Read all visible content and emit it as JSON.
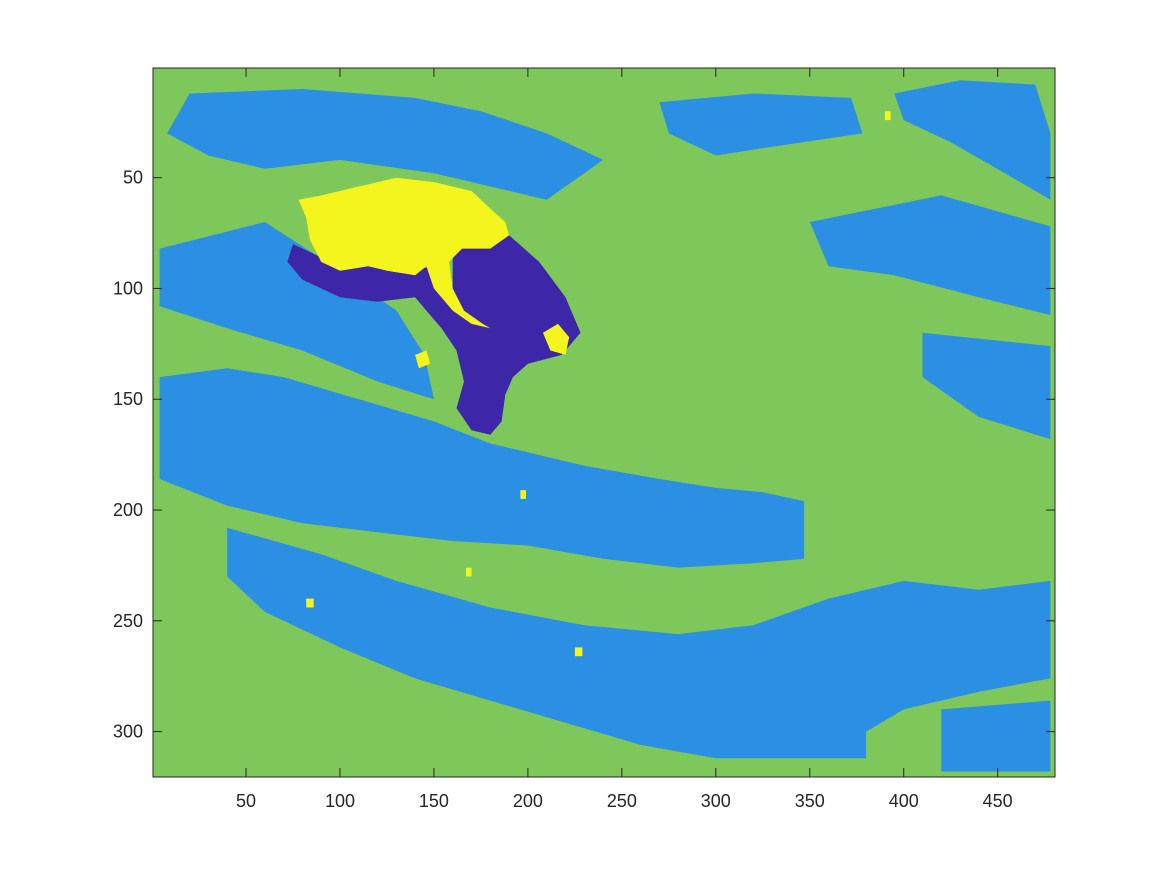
{
  "chart_data": {
    "type": "heatmap",
    "title": "",
    "xlabel": "",
    "ylabel": "",
    "xlim": [
      0.5,
      480.5
    ],
    "ylim": [
      0.5,
      320.5
    ],
    "y_reversed": true,
    "x_ticks": [
      50,
      100,
      150,
      200,
      250,
      300,
      350,
      400,
      450
    ],
    "x_tick_labels": [
      "50",
      "100",
      "150",
      "200",
      "250",
      "300",
      "350",
      "400",
      "450"
    ],
    "y_ticks": [
      50,
      100,
      150,
      200,
      250,
      300
    ],
    "y_tick_labels": [
      "50",
      "100",
      "150",
      "200",
      "250",
      "300"
    ],
    "grid": false,
    "colormap": [
      "#3e26a8",
      "#2b8fe3",
      "#7ec75a",
      "#f5f51e"
    ],
    "classes": [
      1,
      2,
      3,
      4
    ],
    "background_class": 3,
    "regions": [
      {
        "class": 2,
        "points": [
          [
            20,
            12
          ],
          [
            80,
            10
          ],
          [
            140,
            14
          ],
          [
            175,
            20
          ],
          [
            210,
            30
          ],
          [
            240,
            42
          ],
          [
            210,
            60
          ],
          [
            150,
            48
          ],
          [
            100,
            42
          ],
          [
            60,
            46
          ],
          [
            30,
            40
          ],
          [
            8,
            30
          ]
        ]
      },
      {
        "class": 2,
        "points": [
          [
            270,
            16
          ],
          [
            320,
            12
          ],
          [
            372,
            14
          ],
          [
            378,
            30
          ],
          [
            330,
            36
          ],
          [
            300,
            40
          ],
          [
            275,
            30
          ]
        ]
      },
      {
        "class": 2,
        "points": [
          [
            395,
            12
          ],
          [
            430,
            6
          ],
          [
            470,
            8
          ],
          [
            478,
            30
          ],
          [
            478,
            60
          ],
          [
            458,
            50
          ],
          [
            425,
            34
          ],
          [
            400,
            24
          ]
        ]
      },
      {
        "class": 2,
        "points": [
          [
            350,
            70
          ],
          [
            420,
            58
          ],
          [
            478,
            72
          ],
          [
            478,
            112
          ],
          [
            440,
            104
          ],
          [
            395,
            94
          ],
          [
            360,
            90
          ]
        ]
      },
      {
        "class": 2,
        "points": [
          [
            410,
            120
          ],
          [
            478,
            126
          ],
          [
            478,
            168
          ],
          [
            440,
            158
          ],
          [
            410,
            140
          ]
        ]
      },
      {
        "class": 2,
        "points": [
          [
            4,
            82
          ],
          [
            60,
            70
          ],
          [
            100,
            92
          ],
          [
            130,
            110
          ],
          [
            145,
            130
          ],
          [
            150,
            150
          ],
          [
            120,
            142
          ],
          [
            80,
            128
          ],
          [
            40,
            118
          ],
          [
            4,
            108
          ]
        ]
      },
      {
        "class": 2,
        "points": [
          [
            4,
            140
          ],
          [
            40,
            136
          ],
          [
            70,
            140
          ],
          [
            110,
            150
          ],
          [
            150,
            160
          ],
          [
            180,
            170
          ],
          [
            230,
            180
          ],
          [
            270,
            186
          ],
          [
            300,
            190
          ],
          [
            325,
            192
          ],
          [
            347,
            196
          ],
          [
            347,
            222
          ],
          [
            320,
            224
          ],
          [
            280,
            226
          ],
          [
            240,
            222
          ],
          [
            200,
            216
          ],
          [
            160,
            214
          ],
          [
            120,
            210
          ],
          [
            80,
            206
          ],
          [
            40,
            198
          ],
          [
            4,
            186
          ]
        ]
      },
      {
        "class": 2,
        "points": [
          [
            40,
            208
          ],
          [
            90,
            220
          ],
          [
            130,
            232
          ],
          [
            180,
            244
          ],
          [
            230,
            252
          ],
          [
            280,
            256
          ],
          [
            320,
            252
          ],
          [
            360,
            240
          ],
          [
            400,
            232
          ],
          [
            440,
            236
          ],
          [
            478,
            232
          ],
          [
            478,
            276
          ],
          [
            440,
            282
          ],
          [
            400,
            290
          ],
          [
            380,
            300
          ],
          [
            380,
            312
          ],
          [
            300,
            312
          ],
          [
            260,
            306
          ],
          [
            220,
            296
          ],
          [
            180,
            286
          ],
          [
            140,
            276
          ],
          [
            100,
            262
          ],
          [
            60,
            246
          ],
          [
            40,
            230
          ]
        ]
      },
      {
        "class": 2,
        "points": [
          [
            420,
            290
          ],
          [
            478,
            286
          ],
          [
            478,
            318
          ],
          [
            420,
            318
          ]
        ]
      },
      {
        "class": 1,
        "points": [
          [
            75,
            80
          ],
          [
            90,
            86
          ],
          [
            115,
            90
          ],
          [
            135,
            92
          ],
          [
            150,
            90
          ],
          [
            160,
            100
          ],
          [
            160,
            80
          ],
          [
            175,
            78
          ],
          [
            190,
            76
          ],
          [
            206,
            88
          ],
          [
            220,
            104
          ],
          [
            228,
            120
          ],
          [
            218,
            130
          ],
          [
            200,
            134
          ],
          [
            192,
            140
          ],
          [
            188,
            148
          ],
          [
            186,
            160
          ],
          [
            180,
            166
          ],
          [
            170,
            164
          ],
          [
            162,
            154
          ],
          [
            166,
            142
          ],
          [
            162,
            128
          ],
          [
            154,
            118
          ],
          [
            146,
            110
          ],
          [
            140,
            104
          ],
          [
            120,
            106
          ],
          [
            100,
            104
          ],
          [
            80,
            96
          ],
          [
            72,
            88
          ]
        ]
      },
      {
        "class": 4,
        "points": [
          [
            78,
            60
          ],
          [
            90,
            58
          ],
          [
            110,
            54
          ],
          [
            130,
            50
          ],
          [
            150,
            52
          ],
          [
            170,
            56
          ],
          [
            180,
            64
          ],
          [
            188,
            70
          ],
          [
            190,
            76
          ],
          [
            180,
            82
          ],
          [
            165,
            82
          ],
          [
            158,
            88
          ],
          [
            160,
            100
          ],
          [
            166,
            110
          ],
          [
            176,
            116
          ],
          [
            180,
            118
          ],
          [
            170,
            116
          ],
          [
            160,
            110
          ],
          [
            150,
            100
          ],
          [
            146,
            90
          ],
          [
            140,
            94
          ],
          [
            125,
            92
          ],
          [
            115,
            90
          ],
          [
            100,
            92
          ],
          [
            90,
            88
          ],
          [
            84,
            78
          ],
          [
            82,
            68
          ]
        ]
      },
      {
        "class": 4,
        "points": [
          [
            208,
            120
          ],
          [
            216,
            116
          ],
          [
            222,
            122
          ],
          [
            220,
            130
          ],
          [
            212,
            128
          ]
        ]
      },
      {
        "class": 4,
        "points": [
          [
            140,
            130
          ],
          [
            146,
            128
          ],
          [
            148,
            134
          ],
          [
            142,
            136
          ]
        ]
      },
      {
        "class": 4,
        "points": [
          [
            196,
            191
          ],
          [
            199,
            191
          ],
          [
            199,
            195
          ],
          [
            196,
            195
          ]
        ]
      },
      {
        "class": 4,
        "points": [
          [
            167,
            226
          ],
          [
            170,
            226
          ],
          [
            170,
            230
          ],
          [
            167,
            230
          ]
        ]
      },
      {
        "class": 4,
        "points": [
          [
            225,
            262
          ],
          [
            229,
            262
          ],
          [
            229,
            266
          ],
          [
            225,
            266
          ]
        ]
      },
      {
        "class": 4,
        "points": [
          [
            390,
            20
          ],
          [
            393,
            20
          ],
          [
            393,
            24
          ],
          [
            390,
            24
          ]
        ]
      },
      {
        "class": 4,
        "points": [
          [
            82,
            240
          ],
          [
            86,
            240
          ],
          [
            86,
            244
          ],
          [
            82,
            244
          ]
        ]
      }
    ]
  }
}
